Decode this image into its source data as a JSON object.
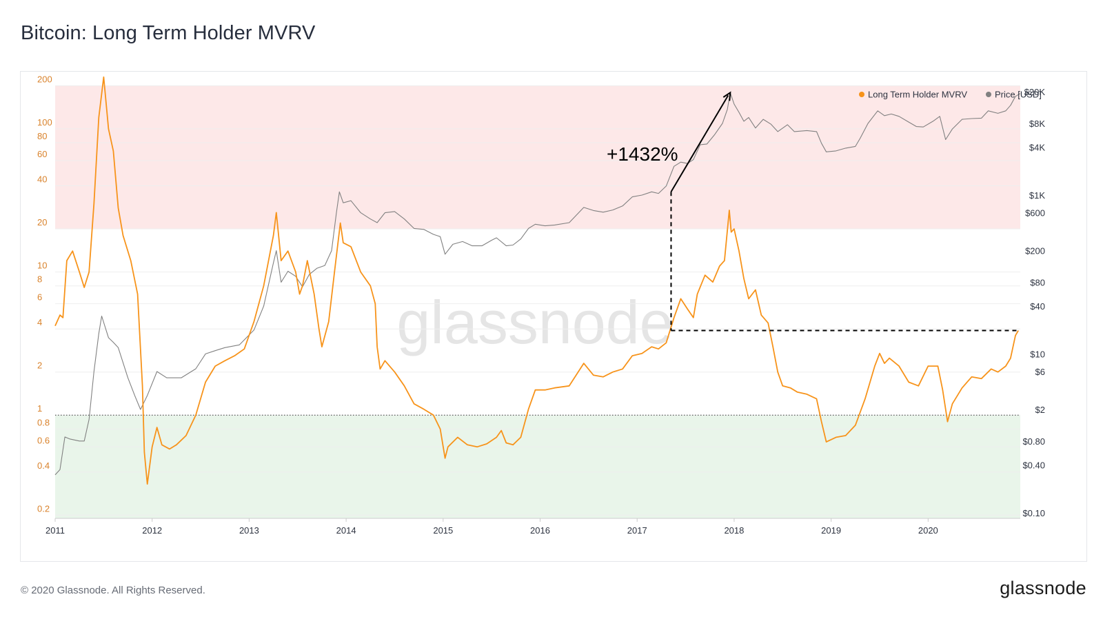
{
  "title": "Bitcoin: Long Term Holder MVRV",
  "footer": "© 2020 Glassnode. All Rights Reserved.",
  "brand": "glassnode",
  "watermark": "glassnode",
  "annotation": "+1432%",
  "colors": {
    "mvrv": "#f7931a",
    "price": "#808080",
    "top_band": "#fde8e8",
    "bottom_band": "#e9f5ea",
    "annotation": "#000000"
  },
  "chart_data": {
    "type": "line",
    "title": "Bitcoin: Long Term Holder MVRV",
    "legend": {
      "position": "top-right",
      "entries": [
        "Long Term Holder MVRV",
        "Price [USD]"
      ]
    },
    "x_axis": {
      "ticks": [
        "2011",
        "2012",
        "2013",
        "2014",
        "2015",
        "2016",
        "2017",
        "2018",
        "2019",
        "2020"
      ],
      "range": [
        2011.0,
        2020.95
      ]
    },
    "y_left": {
      "scale": "log",
      "range": [
        0.19,
        210
      ],
      "ticks": [
        "0.2",
        "0.4",
        "0.6",
        "0.8",
        "1",
        "2",
        "4",
        "6",
        "8",
        "10",
        "20",
        "40",
        "60",
        "80",
        "100",
        "200"
      ]
    },
    "y_right": {
      "scale": "log",
      "range": [
        0.085,
        26000
      ],
      "ticks": [
        "$0.10",
        "$0.40",
        "$0.80",
        "$2",
        "$6",
        "$10",
        "$40",
        "$80",
        "$200",
        "$600",
        "$1K",
        "$4K",
        "$8K",
        "$20K"
      ]
    },
    "bands": [
      {
        "name": "top",
        "from": 20,
        "to": 200
      },
      {
        "name": "bottom",
        "from": 0.19,
        "to": 1
      }
    ],
    "threshold_line": 1,
    "series": [
      {
        "name": "Long Term Holder MVRV",
        "axis": "left",
        "points": [
          [
            2011.0,
            4.2
          ],
          [
            2011.05,
            5.0
          ],
          [
            2011.08,
            4.8
          ],
          [
            2011.12,
            12.0
          ],
          [
            2011.18,
            14.0
          ],
          [
            2011.25,
            10.0
          ],
          [
            2011.3,
            7.8
          ],
          [
            2011.35,
            10.0
          ],
          [
            2011.4,
            30.0
          ],
          [
            2011.45,
            120.0
          ],
          [
            2011.5,
            230.0
          ],
          [
            2011.55,
            100.0
          ],
          [
            2011.6,
            70.0
          ],
          [
            2011.65,
            28.0
          ],
          [
            2011.7,
            18.0
          ],
          [
            2011.78,
            12.0
          ],
          [
            2011.85,
            7.0
          ],
          [
            2011.9,
            1.6
          ],
          [
            2011.92,
            0.55
          ],
          [
            2011.95,
            0.33
          ],
          [
            2012.0,
            0.6
          ],
          [
            2012.05,
            0.82
          ],
          [
            2012.1,
            0.62
          ],
          [
            2012.18,
            0.58
          ],
          [
            2012.25,
            0.62
          ],
          [
            2012.35,
            0.72
          ],
          [
            2012.45,
            1.0
          ],
          [
            2012.55,
            1.7
          ],
          [
            2012.65,
            2.2
          ],
          [
            2012.75,
            2.4
          ],
          [
            2012.85,
            2.6
          ],
          [
            2012.95,
            2.9
          ],
          [
            2013.05,
            4.5
          ],
          [
            2013.15,
            8.0
          ],
          [
            2013.25,
            18.0
          ],
          [
            2013.28,
            26.0
          ],
          [
            2013.33,
            12.0
          ],
          [
            2013.4,
            14.0
          ],
          [
            2013.48,
            10.0
          ],
          [
            2013.52,
            7.0
          ],
          [
            2013.55,
            8.0
          ],
          [
            2013.6,
            12.0
          ],
          [
            2013.67,
            7.0
          ],
          [
            2013.72,
            4.0
          ],
          [
            2013.75,
            3.0
          ],
          [
            2013.82,
            4.5
          ],
          [
            2013.88,
            10.0
          ],
          [
            2013.94,
            22.0
          ],
          [
            2013.97,
            16.0
          ],
          [
            2014.05,
            15.0
          ],
          [
            2014.15,
            10.0
          ],
          [
            2014.25,
            8.0
          ],
          [
            2014.3,
            6.0
          ],
          [
            2014.32,
            3.0
          ],
          [
            2014.35,
            2.1
          ],
          [
            2014.4,
            2.4
          ],
          [
            2014.5,
            2.0
          ],
          [
            2014.6,
            1.6
          ],
          [
            2014.7,
            1.2
          ],
          [
            2014.8,
            1.1
          ],
          [
            2014.9,
            1.0
          ],
          [
            2014.97,
            0.8
          ],
          [
            2015.02,
            0.5
          ],
          [
            2015.05,
            0.6
          ],
          [
            2015.15,
            0.7
          ],
          [
            2015.25,
            0.62
          ],
          [
            2015.35,
            0.6
          ],
          [
            2015.45,
            0.63
          ],
          [
            2015.55,
            0.7
          ],
          [
            2015.6,
            0.78
          ],
          [
            2015.65,
            0.64
          ],
          [
            2015.72,
            0.62
          ],
          [
            2015.8,
            0.7
          ],
          [
            2015.88,
            1.1
          ],
          [
            2015.95,
            1.5
          ],
          [
            2016.05,
            1.5
          ],
          [
            2016.15,
            1.55
          ],
          [
            2016.3,
            1.6
          ],
          [
            2016.45,
            2.3
          ],
          [
            2016.55,
            1.9
          ],
          [
            2016.65,
            1.85
          ],
          [
            2016.75,
            2.0
          ],
          [
            2016.85,
            2.1
          ],
          [
            2016.95,
            2.6
          ],
          [
            2017.05,
            2.7
          ],
          [
            2017.15,
            3.0
          ],
          [
            2017.22,
            2.9
          ],
          [
            2017.3,
            3.2
          ],
          [
            2017.38,
            4.8
          ],
          [
            2017.45,
            6.5
          ],
          [
            2017.52,
            5.5
          ],
          [
            2017.58,
            4.8
          ],
          [
            2017.62,
            7.0
          ],
          [
            2017.7,
            9.5
          ],
          [
            2017.78,
            8.5
          ],
          [
            2017.85,
            11.0
          ],
          [
            2017.9,
            12.0
          ],
          [
            2017.95,
            27.0
          ],
          [
            2017.97,
            19.0
          ],
          [
            2018.0,
            20.0
          ],
          [
            2018.05,
            14.0
          ],
          [
            2018.1,
            9.0
          ],
          [
            2018.15,
            6.5
          ],
          [
            2018.22,
            7.5
          ],
          [
            2018.28,
            5.0
          ],
          [
            2018.35,
            4.4
          ],
          [
            2018.4,
            3.0
          ],
          [
            2018.45,
            2.0
          ],
          [
            2018.5,
            1.6
          ],
          [
            2018.58,
            1.55
          ],
          [
            2018.65,
            1.45
          ],
          [
            2018.75,
            1.4
          ],
          [
            2018.85,
            1.3
          ],
          [
            2018.9,
            0.9
          ],
          [
            2018.95,
            0.65
          ],
          [
            2019.05,
            0.7
          ],
          [
            2019.15,
            0.72
          ],
          [
            2019.25,
            0.85
          ],
          [
            2019.35,
            1.3
          ],
          [
            2019.45,
            2.2
          ],
          [
            2019.5,
            2.7
          ],
          [
            2019.55,
            2.3
          ],
          [
            2019.6,
            2.5
          ],
          [
            2019.7,
            2.2
          ],
          [
            2019.8,
            1.7
          ],
          [
            2019.9,
            1.6
          ],
          [
            2020.0,
            2.2
          ],
          [
            2020.1,
            2.2
          ],
          [
            2020.15,
            1.5
          ],
          [
            2020.2,
            0.9
          ],
          [
            2020.25,
            1.2
          ],
          [
            2020.35,
            1.55
          ],
          [
            2020.45,
            1.85
          ],
          [
            2020.55,
            1.8
          ],
          [
            2020.65,
            2.1
          ],
          [
            2020.72,
            2.0
          ],
          [
            2020.8,
            2.2
          ],
          [
            2020.85,
            2.5
          ],
          [
            2020.9,
            3.6
          ],
          [
            2020.93,
            3.9
          ]
        ]
      },
      {
        "name": "Price [USD]",
        "axis": "right",
        "points": [
          [
            2011.0,
            0.3
          ],
          [
            2011.05,
            0.35
          ],
          [
            2011.1,
            0.9
          ],
          [
            2011.15,
            0.85
          ],
          [
            2011.25,
            0.8
          ],
          [
            2011.3,
            0.8
          ],
          [
            2011.35,
            1.5
          ],
          [
            2011.4,
            6.0
          ],
          [
            2011.45,
            18.0
          ],
          [
            2011.48,
            30.0
          ],
          [
            2011.55,
            16.0
          ],
          [
            2011.6,
            14.0
          ],
          [
            2011.65,
            12.0
          ],
          [
            2011.75,
            5.0
          ],
          [
            2011.82,
            3.0
          ],
          [
            2011.88,
            2.0
          ],
          [
            2011.95,
            3.0
          ],
          [
            2012.05,
            6.0
          ],
          [
            2012.15,
            5.0
          ],
          [
            2012.3,
            5.0
          ],
          [
            2012.45,
            6.5
          ],
          [
            2012.55,
            10.0
          ],
          [
            2012.65,
            11.0
          ],
          [
            2012.75,
            12.0
          ],
          [
            2012.9,
            13.0
          ],
          [
            2013.05,
            20.0
          ],
          [
            2013.15,
            40.0
          ],
          [
            2013.25,
            140.0
          ],
          [
            2013.28,
            200.0
          ],
          [
            2013.33,
            80.0
          ],
          [
            2013.4,
            110.0
          ],
          [
            2013.48,
            95.0
          ],
          [
            2013.55,
            70.0
          ],
          [
            2013.62,
            100.0
          ],
          [
            2013.7,
            120.0
          ],
          [
            2013.78,
            130.0
          ],
          [
            2013.85,
            200.0
          ],
          [
            2013.9,
            600.0
          ],
          [
            2013.93,
            1100.0
          ],
          [
            2013.97,
            800.0
          ],
          [
            2014.05,
            850.0
          ],
          [
            2014.15,
            600.0
          ],
          [
            2014.25,
            500.0
          ],
          [
            2014.32,
            450.0
          ],
          [
            2014.4,
            600.0
          ],
          [
            2014.5,
            620.0
          ],
          [
            2014.6,
            500.0
          ],
          [
            2014.7,
            380.0
          ],
          [
            2014.8,
            370.0
          ],
          [
            2014.9,
            320.0
          ],
          [
            2014.97,
            300.0
          ],
          [
            2015.02,
            180.0
          ],
          [
            2015.1,
            240.0
          ],
          [
            2015.2,
            260.0
          ],
          [
            2015.3,
            230.0
          ],
          [
            2015.4,
            230.0
          ],
          [
            2015.5,
            270.0
          ],
          [
            2015.55,
            290.0
          ],
          [
            2015.65,
            230.0
          ],
          [
            2015.72,
            235.0
          ],
          [
            2015.8,
            280.0
          ],
          [
            2015.88,
            380.0
          ],
          [
            2015.95,
            430.0
          ],
          [
            2016.05,
            410.0
          ],
          [
            2016.15,
            420.0
          ],
          [
            2016.3,
            450.0
          ],
          [
            2016.45,
            700.0
          ],
          [
            2016.55,
            640.0
          ],
          [
            2016.65,
            610.0
          ],
          [
            2016.75,
            650.0
          ],
          [
            2016.85,
            730.0
          ],
          [
            2016.95,
            950.0
          ],
          [
            2017.05,
            1000.0
          ],
          [
            2017.15,
            1100.0
          ],
          [
            2017.22,
            1050.0
          ],
          [
            2017.3,
            1300.0
          ],
          [
            2017.38,
            2300.0
          ],
          [
            2017.45,
            2600.0
          ],
          [
            2017.52,
            2500.0
          ],
          [
            2017.58,
            2800.0
          ],
          [
            2017.65,
            4300.0
          ],
          [
            2017.72,
            4400.0
          ],
          [
            2017.8,
            5800.0
          ],
          [
            2017.88,
            8000.0
          ],
          [
            2017.93,
            12000.0
          ],
          [
            2017.96,
            19500.0
          ],
          [
            2018.0,
            14000.0
          ],
          [
            2018.05,
            11000.0
          ],
          [
            2018.1,
            8500.0
          ],
          [
            2018.15,
            9500.0
          ],
          [
            2018.22,
            7000.0
          ],
          [
            2018.3,
            9000.0
          ],
          [
            2018.38,
            7800.0
          ],
          [
            2018.45,
            6300.0
          ],
          [
            2018.55,
            7700.0
          ],
          [
            2018.62,
            6300.0
          ],
          [
            2018.75,
            6500.0
          ],
          [
            2018.85,
            6300.0
          ],
          [
            2018.9,
            4500.0
          ],
          [
            2018.95,
            3500.0
          ],
          [
            2019.05,
            3600.0
          ],
          [
            2019.15,
            3900.0
          ],
          [
            2019.25,
            4100.0
          ],
          [
            2019.3,
            5200.0
          ],
          [
            2019.38,
            8000.0
          ],
          [
            2019.48,
            11500.0
          ],
          [
            2019.55,
            10000.0
          ],
          [
            2019.62,
            10500.0
          ],
          [
            2019.7,
            9800.0
          ],
          [
            2019.8,
            8300.0
          ],
          [
            2019.88,
            7300.0
          ],
          [
            2019.95,
            7200.0
          ],
          [
            2020.05,
            8500.0
          ],
          [
            2020.12,
            9800.0
          ],
          [
            2020.18,
            5000.0
          ],
          [
            2020.25,
            6800.0
          ],
          [
            2020.35,
            9000.0
          ],
          [
            2020.45,
            9200.0
          ],
          [
            2020.55,
            9300.0
          ],
          [
            2020.62,
            11500.0
          ],
          [
            2020.72,
            10700.0
          ],
          [
            2020.8,
            11500.0
          ],
          [
            2020.85,
            13500.0
          ],
          [
            2020.9,
            17500.0
          ],
          [
            2020.95,
            19000.0
          ]
        ]
      }
    ],
    "annotations": [
      {
        "text": "+1432%",
        "from": [
          2017.35,
          1100
        ],
        "to": [
          2017.96,
          19500
        ]
      }
    ]
  }
}
